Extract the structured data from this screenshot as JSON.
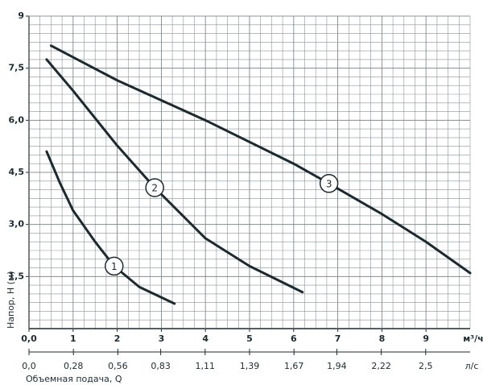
{
  "chart_data": {
    "type": "line",
    "y_label": "Напор, H (м)",
    "x_unit": "м³/ч",
    "x2_unit": "л/с",
    "x2_label": "Объемная подача, Q",
    "xlim": [
      0,
      10
    ],
    "xticks": [
      {
        "value": 0,
        "label": "0,0"
      },
      1,
      2,
      3,
      4,
      5,
      6,
      7,
      8,
      9
    ],
    "x2lim": [
      0,
      2.78
    ],
    "x2ticks": [
      {
        "value": 0,
        "label": "0,0"
      },
      {
        "value": 0.28,
        "label": "0,28"
      },
      {
        "value": 0.56,
        "label": "0,56"
      },
      {
        "value": 0.83,
        "label": "0,83"
      },
      {
        "value": 1.11,
        "label": "1,11"
      },
      {
        "value": 1.39,
        "label": "1,39"
      },
      {
        "value": 1.67,
        "label": "1,67"
      },
      {
        "value": 1.94,
        "label": "1,94"
      },
      {
        "value": 2.22,
        "label": "2,22"
      },
      {
        "value": 2.5,
        "label": "2,5"
      }
    ],
    "ylim": [
      0,
      9
    ],
    "yticks": [
      {
        "value": 1.5,
        "label": "1,5"
      },
      {
        "value": 3,
        "label": "3,0"
      },
      {
        "value": 4.5,
        "label": "4,5"
      },
      {
        "value": 6,
        "label": "6,0"
      },
      {
        "value": 7.5,
        "label": "7,5"
      },
      9
    ],
    "grid": true,
    "series": [
      {
        "name": "1",
        "color": "#1c2a30",
        "x": [
          0.4,
          0.7,
          1,
          1.5,
          1.93,
          2.5,
          3.3
        ],
        "values": [
          5.1,
          4.2,
          3.4,
          2.5,
          1.8,
          1.2,
          0.72
        ]
      },
      {
        "name": "2",
        "color": "#1c2a30",
        "x": [
          0.4,
          1,
          2,
          2.85,
          4,
          5,
          6.2
        ],
        "values": [
          7.75,
          6.85,
          5.27,
          4.06,
          2.6,
          1.8,
          1.05
        ]
      },
      {
        "name": "3",
        "color": "#1c2a30",
        "x": [
          0.5,
          2,
          4,
          6,
          6.8,
          8,
          9,
          10
        ],
        "values": [
          8.15,
          7.15,
          6.0,
          4.75,
          4.18,
          3.3,
          2.5,
          1.6
        ]
      }
    ]
  }
}
